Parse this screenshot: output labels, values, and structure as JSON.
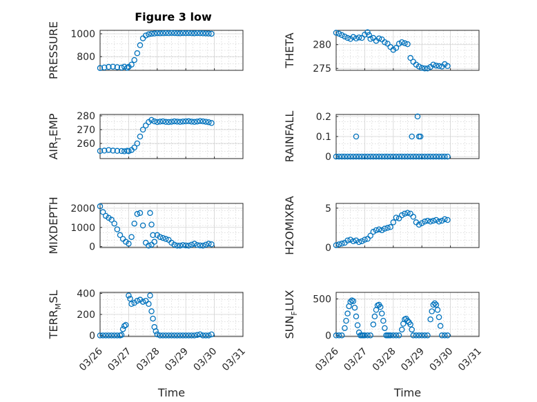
{
  "figure_title": "Figure 3 low",
  "colors": {
    "series": "#0072bd",
    "axis": "#262626",
    "grid": "#d4d4d4"
  },
  "chart_data": [
    {
      "type": "scatter",
      "id": "pressure",
      "title": "Figure 3 low",
      "ylabel": "PRESSURE",
      "xlabel": "",
      "xlim": [
        0,
        5
      ],
      "ylim": [
        680,
        1030
      ],
      "yticks": [
        800,
        1000
      ],
      "x": [
        0,
        0.15,
        0.3,
        0.45,
        0.6,
        0.75,
        0.85,
        0.95,
        1.0,
        1.1,
        1.2,
        1.3,
        1.4,
        1.5,
        1.6,
        1.7,
        1.8,
        1.9,
        2.0,
        2.1,
        2.2,
        2.3,
        2.4,
        2.5,
        2.6,
        2.7,
        2.8,
        2.9,
        3.0,
        3.1,
        3.2,
        3.3,
        3.4,
        3.5,
        3.6,
        3.7,
        3.8,
        3.9
      ],
      "values": [
        700,
        705,
        710,
        712,
        708,
        704,
        712,
        702,
        710,
        730,
        770,
        830,
        900,
        960,
        985,
        995,
        1000,
        1002,
        1005,
        1004,
        1005,
        1006,
        1005,
        1007,
        1006,
        1005,
        1004,
        1006,
        1005,
        1006,
        1005,
        1004,
        1006,
        1005,
        1004,
        1003,
        1002,
        1000
      ],
      "xticks": [],
      "xticklabels": []
    },
    {
      "type": "scatter",
      "id": "theta",
      "title": "",
      "ylabel": "THETA",
      "xlabel": "",
      "xlim": [
        0,
        5
      ],
      "ylim": [
        274.6,
        283
      ],
      "yticks": [
        275,
        280
      ],
      "x": [
        0,
        0.1,
        0.2,
        0.3,
        0.4,
        0.5,
        0.6,
        0.7,
        0.8,
        0.9,
        1.0,
        1.1,
        1.15,
        1.2,
        1.3,
        1.4,
        1.5,
        1.6,
        1.7,
        1.8,
        1.9,
        2.0,
        2.1,
        2.2,
        2.3,
        2.4,
        2.5,
        2.6,
        2.7,
        2.8,
        2.9,
        3.0,
        3.1,
        3.2,
        3.3,
        3.4,
        3.5,
        3.6,
        3.7,
        3.8,
        3.9
      ],
      "values": [
        282.5,
        282.3,
        282,
        281.7,
        281.4,
        281.2,
        281.6,
        281.3,
        281.5,
        281.4,
        282.1,
        282.6,
        282,
        281.2,
        281.4,
        280.8,
        281.3,
        281.1,
        280.5,
        280.2,
        279.5,
        278.9,
        279.3,
        280.2,
        280.5,
        280.3,
        280.1,
        277.2,
        276.4,
        275.8,
        275.4,
        275.1,
        275,
        275,
        275.3,
        275.8,
        275.6,
        275.5,
        275.4,
        275.9,
        275.5
      ],
      "xticks": [],
      "xticklabels": []
    },
    {
      "type": "scatter",
      "id": "air_temp",
      "title": "",
      "ylabel": "AIR_TEMP",
      "xlabel": "",
      "xlim": [
        0,
        5
      ],
      "ylim": [
        249,
        281
      ],
      "yticks": [
        260,
        270,
        280
      ],
      "x": [
        0,
        0.15,
        0.3,
        0.45,
        0.6,
        0.75,
        0.85,
        0.95,
        1.0,
        1.1,
        1.2,
        1.3,
        1.4,
        1.5,
        1.6,
        1.7,
        1.8,
        1.9,
        2.0,
        2.1,
        2.2,
        2.3,
        2.4,
        2.5,
        2.6,
        2.7,
        2.8,
        2.9,
        3.0,
        3.1,
        3.2,
        3.3,
        3.4,
        3.5,
        3.6,
        3.7,
        3.8,
        3.9
      ],
      "values": [
        254.5,
        254.8,
        255.2,
        254.8,
        254.6,
        254.5,
        254.3,
        254.7,
        254.4,
        255.2,
        257,
        260,
        265,
        270,
        273,
        275.5,
        277,
        276,
        275.5,
        275.8,
        276,
        275.6,
        275.5,
        275.7,
        276,
        275.8,
        275.6,
        275.9,
        276,
        276.1,
        275.8,
        275.6,
        275.9,
        276.2,
        276,
        275.7,
        275.4,
        274.8
      ],
      "xticks": [],
      "xticklabels": []
    },
    {
      "type": "scatter",
      "id": "rainfall",
      "title": "",
      "ylabel": "RAINFALL",
      "xlabel": "",
      "xlim": [
        0,
        5
      ],
      "ylim": [
        -0.01,
        0.21
      ],
      "yticks": [
        0,
        0.1,
        0.2
      ],
      "x": [
        0,
        0.1,
        0.2,
        0.3,
        0.4,
        0.5,
        0.6,
        0.7,
        0.8,
        0.9,
        1.0,
        1.1,
        1.2,
        1.3,
        1.4,
        1.5,
        1.6,
        1.7,
        1.8,
        1.9,
        2.0,
        2.1,
        2.2,
        2.3,
        2.4,
        2.5,
        2.6,
        2.7,
        2.8,
        2.9,
        3.0,
        3.1,
        3.2,
        3.3,
        3.4,
        3.5,
        3.6,
        3.7,
        3.8,
        3.9,
        0.7,
        2.65,
        2.85,
        2.9,
        2.95
      ],
      "values": [
        0,
        0,
        0,
        0,
        0,
        0,
        0,
        0,
        0,
        0,
        0,
        0,
        0,
        0,
        0,
        0,
        0,
        0,
        0,
        0,
        0,
        0,
        0,
        0,
        0,
        0,
        0,
        0,
        0,
        0,
        0,
        0,
        0,
        0,
        0,
        0,
        0,
        0,
        0,
        0,
        0.1,
        0.1,
        0.2,
        0.1,
        0.1
      ],
      "xticks": [],
      "xticklabels": []
    },
    {
      "type": "scatter",
      "id": "mixdepth",
      "title": "",
      "ylabel": "MIXDEPTH",
      "xlabel": "",
      "xlim": [
        0,
        5
      ],
      "ylim": [
        -50,
        2250
      ],
      "yticks": [
        0,
        1000,
        2000
      ],
      "x": [
        0,
        0.1,
        0.2,
        0.3,
        0.4,
        0.5,
        0.6,
        0.7,
        0.8,
        0.9,
        1.0,
        1.1,
        1.2,
        1.3,
        1.4,
        1.5,
        1.6,
        1.7,
        1.8,
        1.9,
        2.0,
        2.1,
        2.2,
        2.3,
        2.4,
        2.5,
        2.6,
        2.7,
        2.8,
        2.9,
        3.0,
        3.1,
        3.2,
        3.3,
        3.4,
        3.5,
        3.6,
        3.7,
        3.8,
        3.9,
        1.75,
        1.8,
        1.85
      ],
      "values": [
        2100,
        1800,
        1600,
        1500,
        1400,
        1200,
        900,
        600,
        400,
        250,
        150,
        500,
        1200,
        1700,
        1750,
        1100,
        200,
        50,
        100,
        250,
        600,
        500,
        450,
        400,
        350,
        200,
        100,
        50,
        50,
        80,
        60,
        50,
        100,
        150,
        80,
        60,
        50,
        100,
        150,
        120,
        1750,
        1150,
        600
      ],
      "xticks": [],
      "xticklabels": []
    },
    {
      "type": "scatter",
      "id": "h2omixra",
      "title": "",
      "ylabel": "H2OMIXRA",
      "xlabel": "",
      "xlim": [
        0,
        5
      ],
      "ylim": [
        0,
        5.6
      ],
      "yticks": [
        0,
        5
      ],
      "x": [
        0,
        0.1,
        0.2,
        0.3,
        0.4,
        0.5,
        0.6,
        0.7,
        0.8,
        0.9,
        1.0,
        1.1,
        1.2,
        1.3,
        1.4,
        1.5,
        1.6,
        1.7,
        1.8,
        1.9,
        2.0,
        2.1,
        2.2,
        2.3,
        2.4,
        2.5,
        2.6,
        2.7,
        2.8,
        2.9,
        3.0,
        3.1,
        3.2,
        3.3,
        3.4,
        3.5,
        3.6,
        3.7,
        3.8,
        3.9
      ],
      "values": [
        0.3,
        0.4,
        0.5,
        0.6,
        0.9,
        1.0,
        0.8,
        0.9,
        0.7,
        0.8,
        1.0,
        1.1,
        1.5,
        2.0,
        2.2,
        2.3,
        2.2,
        2.4,
        2.5,
        2.6,
        3.2,
        3.8,
        3.7,
        4.1,
        4.3,
        4.4,
        4.3,
        3.9,
        3.2,
        2.9,
        3.1,
        3.3,
        3.4,
        3.3,
        3.4,
        3.5,
        3.3,
        3.4,
        3.6,
        3.5
      ],
      "xticks": [],
      "xticklabels": []
    },
    {
      "type": "scatter",
      "id": "terr_msl",
      "title": "",
      "ylabel": "TERR_MSL",
      "xlabel": "Time",
      "xlim": [
        0,
        5
      ],
      "ylim": [
        -10,
        410
      ],
      "yticks": [
        0,
        200,
        400
      ],
      "x": [
        0,
        0.1,
        0.2,
        0.3,
        0.4,
        0.5,
        0.6,
        0.7,
        0.75,
        0.8,
        0.85,
        0.9,
        1.0,
        1.05,
        1.1,
        1.2,
        1.3,
        1.4,
        1.5,
        1.6,
        1.7,
        1.75,
        1.8,
        1.85,
        1.9,
        1.95,
        2.0,
        2.1,
        2.2,
        2.3,
        2.4,
        2.5,
        2.6,
        2.7,
        2.8,
        2.9,
        3.0,
        3.1,
        3.2,
        3.3,
        3.4,
        3.5,
        3.6,
        3.7,
        3.8,
        3.9
      ],
      "values": [
        0,
        0,
        0,
        0,
        0,
        0,
        0,
        0,
        5,
        60,
        90,
        100,
        380,
        350,
        300,
        310,
        330,
        340,
        320,
        330,
        300,
        380,
        230,
        160,
        80,
        40,
        10,
        0,
        0,
        0,
        0,
        0,
        0,
        0,
        0,
        0,
        0,
        0,
        0,
        0,
        5,
        10,
        0,
        0,
        0,
        10
      ],
      "xticks": [
        0,
        1,
        2,
        3,
        4,
        5
      ],
      "xticklabels": [
        "03/26",
        "03/27",
        "03/28",
        "03/29",
        "03/30",
        "03/31"
      ]
    },
    {
      "type": "scatter",
      "id": "sun_flux",
      "title": "",
      "ylabel": "SUN_FLUX",
      "xlabel": "Time",
      "xlim": [
        0,
        5
      ],
      "ylim": [
        -15,
        590
      ],
      "yticks": [
        0,
        500
      ],
      "x": [
        0,
        0.1,
        0.2,
        0.3,
        0.35,
        0.4,
        0.45,
        0.5,
        0.55,
        0.6,
        0.65,
        0.7,
        0.75,
        0.8,
        0.85,
        0.9,
        0.95,
        1.0,
        1.1,
        1.2,
        1.3,
        1.35,
        1.4,
        1.45,
        1.5,
        1.55,
        1.6,
        1.65,
        1.7,
        1.75,
        1.8,
        1.85,
        1.9,
        2.0,
        2.1,
        2.2,
        2.3,
        2.35,
        2.4,
        2.45,
        2.5,
        2.55,
        2.6,
        2.65,
        2.7,
        2.8,
        2.9,
        3.0,
        3.1,
        3.2,
        3.3,
        3.35,
        3.4,
        3.45,
        3.5,
        3.55,
        3.6,
        3.65,
        3.7,
        3.8,
        3.9
      ],
      "values": [
        0,
        0,
        0,
        100,
        200,
        300,
        400,
        460,
        480,
        470,
        380,
        260,
        140,
        40,
        0,
        0,
        0,
        0,
        0,
        0,
        150,
        260,
        350,
        410,
        420,
        390,
        300,
        200,
        100,
        0,
        0,
        0,
        0,
        0,
        0,
        0,
        80,
        160,
        220,
        230,
        200,
        180,
        150,
        80,
        0,
        0,
        0,
        0,
        0,
        0,
        220,
        330,
        420,
        440,
        420,
        350,
        250,
        130,
        0,
        0,
        0
      ],
      "xticks": [
        0,
        1,
        2,
        3,
        4,
        5
      ],
      "xticklabels": [
        "03/26",
        "03/27",
        "03/28",
        "03/29",
        "03/30",
        "03/31"
      ]
    }
  ]
}
